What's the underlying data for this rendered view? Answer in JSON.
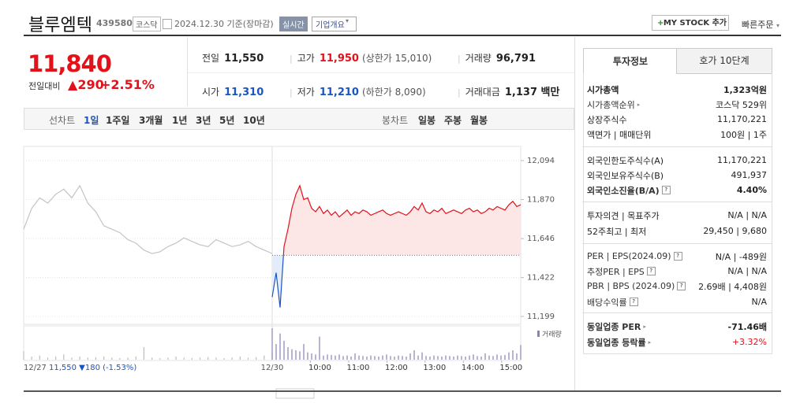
{
  "header": {
    "name": "블루엠텍",
    "code": "439580",
    "market": "코스닥",
    "date": "2024.12.30 기준(장마감)",
    "status": "실시간",
    "company_info": "기업개요",
    "mystock": "MY STOCK 추가",
    "quick_order": "빠른주문"
  },
  "price": {
    "current": "11,840",
    "change_label": "전일대비",
    "change": "290",
    "change_rate": "+2.51%"
  },
  "summary": {
    "rows": [
      [
        {
          "label": "전일",
          "value": "11,550"
        },
        {
          "label": "고가",
          "value": "11,950",
          "extra": "(상한가 15,010)"
        },
        {
          "label": "거래량",
          "value": "96,791"
        }
      ],
      [
        {
          "label": "시가",
          "value": "11,310"
        },
        {
          "label": "저가",
          "value": "11,210",
          "extra": "(하한가 8,090)"
        },
        {
          "label": "거래대금",
          "value": "1,137 백만"
        }
      ]
    ]
  },
  "chart_tabs": {
    "line_label": "선차트",
    "line": [
      "1일",
      "1주일",
      "3개월",
      "1년",
      "3년",
      "5년",
      "10년"
    ],
    "candle_label": "봉차트",
    "candle": [
      "일봉",
      "주봉",
      "월봉"
    ]
  },
  "chart_data": {
    "type": "line",
    "ylim": [
      11199,
      12094
    ],
    "yticks": [
      {
        "value": 12094,
        "label": "12,094"
      },
      {
        "value": 11870,
        "label": "11,870"
      },
      {
        "value": 11646,
        "label": "11,646"
      },
      {
        "value": 11422,
        "label": "11,422"
      },
      {
        "value": 11199,
        "label": "11,199"
      }
    ],
    "prev_close": 11550,
    "prev_day": {
      "values": [
        11700,
        11820,
        11880,
        11850,
        11900,
        11930,
        11880,
        11950,
        11850,
        11800,
        11720,
        11700,
        11680,
        11640,
        11620,
        11580,
        11560,
        11570,
        11600,
        11620,
        11650,
        11630,
        11610,
        11600,
        11640,
        11620,
        11600,
        11610,
        11630,
        11600,
        11580,
        11560
      ],
      "volume": [
        800,
        300,
        400,
        200,
        300,
        500,
        200,
        300,
        200,
        250,
        300,
        200,
        150,
        200,
        300,
        1200,
        200,
        150,
        200,
        300,
        200,
        150,
        200,
        250,
        200,
        150,
        200,
        300,
        200,
        250,
        400,
        600
      ]
    },
    "today": {
      "values": [
        11310,
        11450,
        11250,
        11600,
        11700,
        11820,
        11900,
        11950,
        11870,
        11880,
        11820,
        11800,
        11830,
        11790,
        11810,
        11780,
        11800,
        11770,
        11790,
        11810,
        11780,
        11800,
        11790,
        11810,
        11800,
        11780,
        11790,
        11800,
        11810,
        11790,
        11780,
        11790,
        11800,
        11790,
        11780,
        11800,
        11830,
        11810,
        11850,
        11800,
        11790,
        11810,
        11800,
        11820,
        11790,
        11800,
        11810,
        11800,
        11790,
        11810,
        11820,
        11800,
        11810,
        11790,
        11800,
        11820,
        11810,
        11830,
        11820,
        11810,
        11840,
        11860,
        11830,
        11840
      ],
      "volume": [
        3000,
        1500,
        2500,
        1800,
        1200,
        1000,
        900,
        800,
        1500,
        700,
        600,
        500,
        2200,
        400,
        500,
        450,
        400,
        500,
        350,
        400,
        300,
        600,
        400,
        350,
        300,
        400,
        350,
        300,
        400,
        500,
        350,
        300,
        400,
        350,
        300,
        600,
        900,
        400,
        700,
        350,
        300,
        400,
        350,
        300,
        400,
        350,
        300,
        400,
        350,
        300,
        400,
        500,
        350,
        300,
        600,
        400,
        350,
        500,
        400,
        450,
        700,
        900,
        600,
        1400
      ]
    },
    "volume_label": "거래량",
    "prev_date": "12/27",
    "prev_summary": "11,550 ▼180 (-1.53%)",
    "today_date": "12/30",
    "times": [
      "10:00",
      "11:00",
      "12:00",
      "13:00",
      "14:00",
      "15:00"
    ]
  },
  "investment": {
    "tabs": [
      "투자정보",
      "호가 10단계"
    ],
    "groups": [
      [
        {
          "label": "시가총액",
          "value": "1,323억원"
        },
        {
          "label": "시가총액순위",
          "value": "코스닥 529위"
        },
        {
          "label": "상장주식수",
          "value": "11,170,221"
        },
        {
          "label": "액면가 | 매매단위",
          "value": "100원 | 1주"
        }
      ],
      [
        {
          "label": "외국인한도주식수(A)",
          "value": "11,170,221"
        },
        {
          "label": "외국인보유주식수(B)",
          "value": "491,937"
        },
        {
          "label": "외국인소진율(B/A)",
          "value": "4.40%"
        }
      ],
      [
        {
          "label": "투자의견 | 목표주가",
          "value": "N/A | N/A"
        },
        {
          "label": "52주최고 | 최저",
          "value": "29,450 | 9,680"
        }
      ],
      [
        {
          "label": "PER | EPS(2024.09)",
          "value": "N/A | -489원"
        },
        {
          "label": "추정PER | EPS",
          "value": "N/A | N/A"
        },
        {
          "label": "PBR | BPS (2024.09)",
          "value": "2.69배 | 4,408원"
        },
        {
          "label": "배당수익률",
          "value": "N/A"
        }
      ],
      [
        {
          "label": "동일업종 PER",
          "value": "-71.46배"
        },
        {
          "label": "동일업종 등락률",
          "value": "+3.32%"
        }
      ]
    ]
  }
}
